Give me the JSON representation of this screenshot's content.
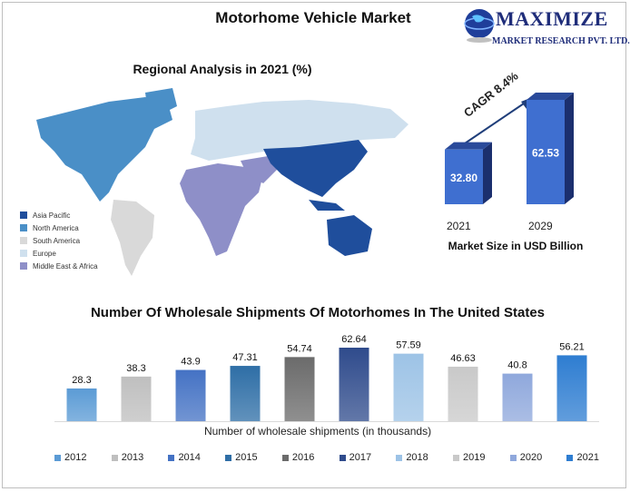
{
  "title": "Motorhome Vehicle Market",
  "logo": {
    "brand": "MAXIMIZE",
    "sub": "MARKET RESEARCH PVT. LTD.",
    "icon": "globe-icon"
  },
  "region": {
    "title": "Regional Analysis in 2021 (%)",
    "legend": [
      {
        "label": "Asia Pacific",
        "color": "#1f4e9c"
      },
      {
        "label": "North America",
        "color": "#4a8fc7"
      },
      {
        "label": "South America",
        "color": "#d9d9d9"
      },
      {
        "label": "Europe",
        "color": "#cfe0ee"
      },
      {
        "label": "Middle East & Africa",
        "color": "#8e8fc8"
      }
    ]
  },
  "market_size": {
    "cagr": "CAGR 8.4%",
    "title": "Market Size in USD Billion",
    "bars": [
      {
        "year": "2021",
        "value": 32.8,
        "label": "32.80"
      },
      {
        "year": "2029",
        "value": 62.53,
        "label": "62.53"
      }
    ]
  },
  "chart_data": {
    "type": "bar",
    "title": "Number Of Wholesale Shipments Of Motorhomes In The United States",
    "xlabel": "Number of wholesale shipments (in thousands)",
    "ylabel": "",
    "ylim": [
      0,
      62.64
    ],
    "legend_position": "bottom",
    "categories": [
      "2012",
      "2013",
      "2014",
      "2015",
      "2016",
      "2017",
      "2018",
      "2019",
      "2020",
      "2021"
    ],
    "values": [
      28.3,
      38.3,
      43.9,
      47.31,
      54.74,
      62.64,
      57.59,
      46.63,
      40.8,
      56.21
    ],
    "colors": [
      "#5b9bd5",
      "#bfbfbf",
      "#4472c4",
      "#2e6ea6",
      "#6b6b6b",
      "#2f4b8c",
      "#9dc3e6",
      "#c9c9c9",
      "#8fa8dc",
      "#2e7dd1"
    ]
  }
}
